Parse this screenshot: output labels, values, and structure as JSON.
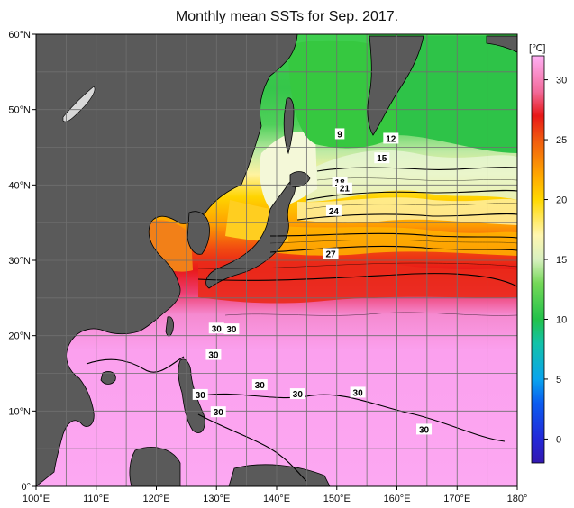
{
  "title": "Monthly mean SSTs for Sep. 2017.",
  "unit": "[℃]",
  "colors": {
    "land": "#5a5a5a",
    "coast": "#000000",
    "grid": "#6f6f6f"
  },
  "map_data": {
    "lon_ticks": [
      "100°E",
      "110°E",
      "120°E",
      "130°E",
      "140°E",
      "150°E",
      "160°E",
      "170°E",
      "180°"
    ],
    "lat_ticks": [
      "0°",
      "10°N",
      "20°N",
      "30°N",
      "40°N",
      "50°N",
      "60°N"
    ],
    "contour_labels": [
      {
        "text": "9",
        "lon": 150.5,
        "lat": 46.8
      },
      {
        "text": "12",
        "lon": 159.0,
        "lat": 46.2
      },
      {
        "text": "15",
        "lon": 157.5,
        "lat": 43.6
      },
      {
        "text": "18",
        "lon": 150.5,
        "lat": 40.4
      },
      {
        "text": "21",
        "lon": 151.3,
        "lat": 39.6
      },
      {
        "text": "24",
        "lon": 149.5,
        "lat": 36.6
      },
      {
        "text": "27",
        "lon": 149.0,
        "lat": 30.9
      },
      {
        "text": "30",
        "lon": 130.0,
        "lat": 21.0
      },
      {
        "text": "30",
        "lon": 132.5,
        "lat": 20.9
      },
      {
        "text": "30",
        "lon": 129.5,
        "lat": 17.5
      },
      {
        "text": "30",
        "lon": 137.2,
        "lat": 13.5
      },
      {
        "text": "30",
        "lon": 127.3,
        "lat": 12.2
      },
      {
        "text": "30",
        "lon": 130.3,
        "lat": 9.9
      },
      {
        "text": "30",
        "lon": 143.5,
        "lat": 12.3
      },
      {
        "text": "30",
        "lon": 153.5,
        "lat": 12.5
      },
      {
        "text": "30",
        "lon": 164.5,
        "lat": 7.6
      }
    ]
  },
  "colorbar": {
    "tick_labels": [
      "0",
      "5",
      "10",
      "15",
      "20",
      "25",
      "30"
    ],
    "tick_values": [
      0,
      5,
      10,
      15,
      20,
      25,
      30
    ],
    "range": [
      -2,
      32
    ],
    "stops": [
      {
        "v": -2,
        "c": "#3318b0"
      },
      {
        "v": 0,
        "c": "#2328d8"
      },
      {
        "v": 3,
        "c": "#0b5cf0"
      },
      {
        "v": 5,
        "c": "#0aa4ee"
      },
      {
        "v": 8,
        "c": "#12c2a8"
      },
      {
        "v": 10,
        "c": "#23c24a"
      },
      {
        "v": 13,
        "c": "#74d858"
      },
      {
        "v": 15,
        "c": "#d8f0c0"
      },
      {
        "v": 17,
        "c": "#fff6b0"
      },
      {
        "v": 20,
        "c": "#ffd800"
      },
      {
        "v": 22,
        "c": "#ffa800"
      },
      {
        "v": 25,
        "c": "#f05a10"
      },
      {
        "v": 27,
        "c": "#e81818"
      },
      {
        "v": 29,
        "c": "#f26a9a"
      },
      {
        "v": 32,
        "c": "#ffb0f4"
      }
    ]
  }
}
